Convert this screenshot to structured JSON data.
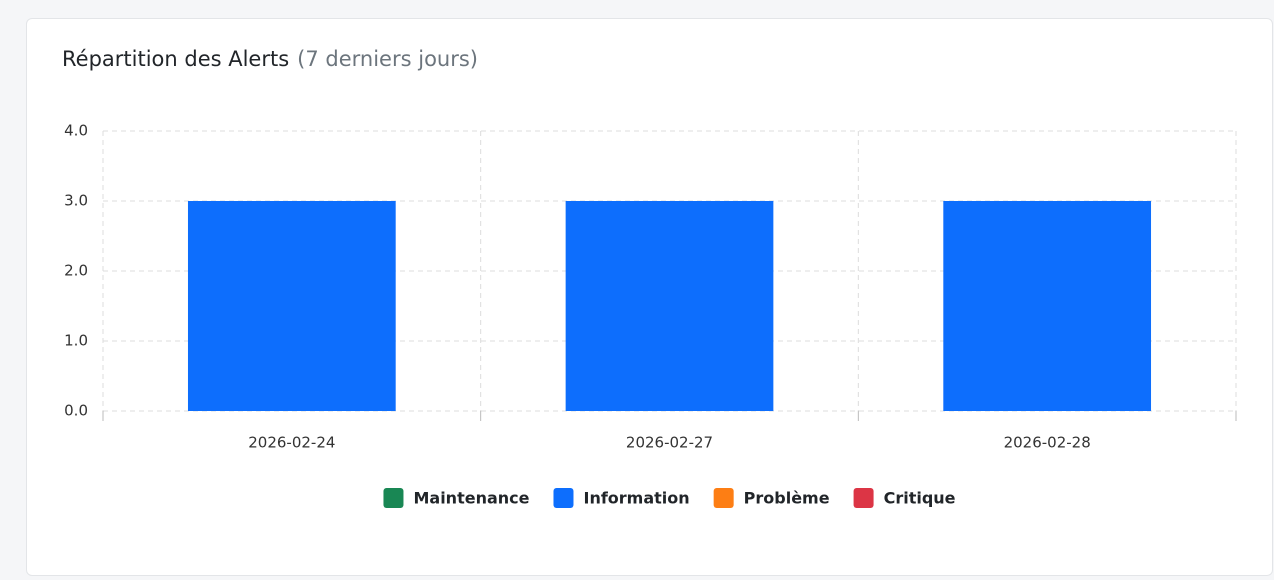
{
  "chart_data": {
    "type": "bar",
    "stacked": true,
    "title": "Répartition des Alerts",
    "subtitle": "(7 derniers jours)",
    "categories": [
      "2026-02-24",
      "2026-02-27",
      "2026-02-28"
    ],
    "series": [
      {
        "name": "Maintenance",
        "color": "#198754",
        "values": [
          0,
          0,
          0
        ]
      },
      {
        "name": "Information",
        "color": "#0d6efd",
        "values": [
          3,
          3,
          3
        ]
      },
      {
        "name": "Problème",
        "color": "#fd7e14",
        "values": [
          0,
          0,
          0
        ]
      },
      {
        "name": "Critique",
        "color": "#dc3545",
        "values": [
          0,
          0,
          0
        ]
      }
    ],
    "ylim": [
      0,
      4
    ],
    "yticks": [
      {
        "value": 0,
        "label": "0.0"
      },
      {
        "value": 1,
        "label": "1.0"
      },
      {
        "value": 2,
        "label": "2.0"
      },
      {
        "value": 3,
        "label": "3.0"
      },
      {
        "value": 4,
        "label": "4.0"
      }
    ],
    "grid": true,
    "legend": "bottom"
  }
}
